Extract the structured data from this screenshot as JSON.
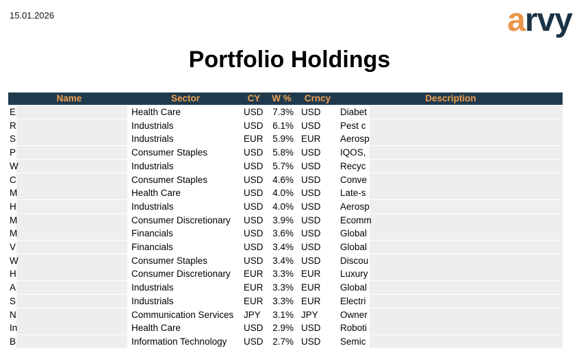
{
  "header": {
    "date": "15.01.2026",
    "logo": "arvy",
    "title": "Portfolio Holdings"
  },
  "table": {
    "columns": [
      "Name",
      "Sector",
      "CY",
      "W %",
      "Crncy",
      "Description"
    ],
    "rows": [
      [
        "E",
        "Health Care",
        "USD",
        "7.3%",
        "USD",
        "Diabet"
      ],
      [
        "R",
        "Industrials",
        "USD",
        "6.1%",
        "USD",
        "Pest c"
      ],
      [
        "S",
        "Industrials",
        "EUR",
        "5.9%",
        "EUR",
        "Aerosp"
      ],
      [
        "P",
        "Consumer Staples",
        "USD",
        "5.8%",
        "USD",
        "IQOS,"
      ],
      [
        "W",
        "Industrials",
        "USD",
        "5.7%",
        "USD",
        "Recyc"
      ],
      [
        "C",
        "Consumer Staples",
        "USD",
        "4.6%",
        "USD",
        "Conve"
      ],
      [
        "M",
        "Health Care",
        "USD",
        "4.0%",
        "USD",
        "Late-s"
      ],
      [
        "H",
        "Industrials",
        "USD",
        "4.0%",
        "USD",
        "Aerosp"
      ],
      [
        "M",
        "Consumer Discretionary",
        "USD",
        "3.9%",
        "USD",
        "Ecomm"
      ],
      [
        "M",
        "Financials",
        "USD",
        "3.6%",
        "USD",
        "Global"
      ],
      [
        "V",
        "Financials",
        "USD",
        "3.4%",
        "USD",
        "Global"
      ],
      [
        "W",
        "Consumer Staples",
        "USD",
        "3.4%",
        "USD",
        "Discou"
      ],
      [
        "H",
        "Consumer Discretionary",
        "EUR",
        "3.3%",
        "EUR",
        "Luxury"
      ],
      [
        "A",
        "Industrials",
        "EUR",
        "3.3%",
        "EUR",
        "Global"
      ],
      [
        "S",
        "Industrials",
        "EUR",
        "3.3%",
        "EUR",
        "Electri"
      ],
      [
        "N",
        "Communication Services",
        "JPY",
        "3.1%",
        "JPY",
        "Owner"
      ],
      [
        "In",
        "Health Care",
        "USD",
        "2.9%",
        "USD",
        "Roboti"
      ],
      [
        "B",
        "Information Technology",
        "USD",
        "2.7%",
        "USD",
        "Semic"
      ]
    ]
  }
}
